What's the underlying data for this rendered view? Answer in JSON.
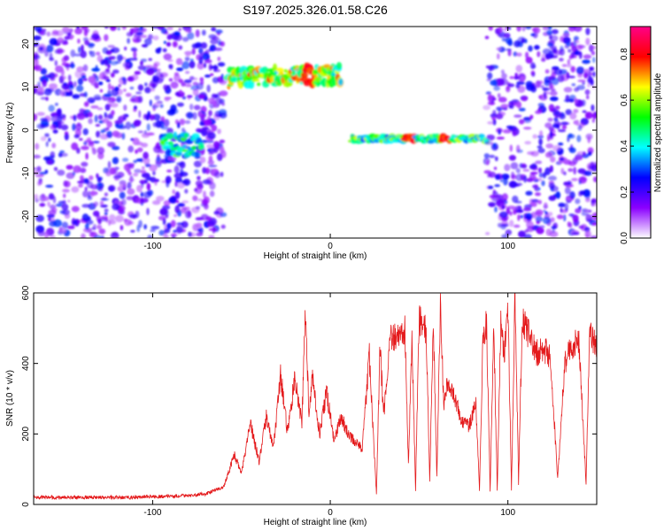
{
  "chart_data": [
    {
      "type": "heatmap",
      "title": "S197.2025.326.01.58.C26",
      "xlabel": "Height of straight line (km)",
      "ylabel": "Frequency (Hz)",
      "xlim": [
        -167,
        150
      ],
      "ylim": [
        -25,
        24
      ],
      "xticks": [
        "-100",
        "0",
        "100"
      ],
      "yticks": [
        "-20",
        "-10",
        "0",
        "10",
        "20"
      ],
      "colorbar": {
        "label": "Normalized spectral amplitude",
        "range": [
          0.0,
          0.92
        ],
        "ticks": [
          "0.0",
          "0.2",
          "0.4",
          "0.6",
          "0.8"
        ],
        "colormap": [
          "#ffffff",
          "#8b00ff",
          "#0000ff",
          "#00ffff",
          "#00ff00",
          "#ffff00",
          "#ff0000",
          "#ff0088"
        ]
      },
      "features": [
        {
          "x_range": [
            -167,
            -60
          ],
          "freq": "broadband",
          "amplitude": 0.2
        },
        {
          "x_range": [
            -95,
            -72
          ],
          "freq_range": [
            -6,
            -1
          ],
          "amplitude": 0.45
        },
        {
          "x_range": [
            -58,
            6
          ],
          "freq_start": 12,
          "freq_end": 13,
          "amplitude": 0.6,
          "max": 0.85,
          "max_at": -12
        },
        {
          "x_range": [
            12,
            88
          ],
          "freq": -2,
          "amplitude": 0.5,
          "max": 0.85,
          "max_at": [
            45,
            65
          ]
        },
        {
          "x_range": [
            88,
            150
          ],
          "freq": "broadband",
          "amplitude": 0.2
        }
      ],
      "grid": false
    },
    {
      "type": "line",
      "title": "",
      "xlabel": "Height of straight line (km)",
      "ylabel": "SNR (10 * v/v)",
      "xlim": [
        -167,
        150
      ],
      "ylim": [
        0,
        600
      ],
      "xticks": [
        "-100",
        "0",
        "100"
      ],
      "yticks": [
        "0",
        "200",
        "400",
        "600"
      ],
      "color": "#e41a1c",
      "grid": false,
      "series": [
        {
          "x": [
            -167,
            -140,
            -110,
            -80,
            -70,
            -60,
            -54,
            -50,
            -45,
            -40,
            -36,
            -32,
            -28,
            -24,
            -20,
            -16,
            -14,
            -12,
            -10,
            -6,
            -2,
            2,
            6,
            10,
            14,
            18,
            22,
            24,
            26,
            28,
            30,
            34,
            38,
            42,
            44,
            46,
            48,
            50,
            54,
            56,
            58,
            60,
            62,
            64,
            66,
            70,
            74,
            78,
            82,
            84,
            86,
            88,
            90,
            92,
            94,
            96,
            98,
            100,
            102,
            104,
            106,
            108,
            112,
            116,
            120,
            124,
            128,
            132,
            136,
            140,
            144,
            146,
            148,
            150
          ],
          "y": [
            20,
            20,
            20,
            25,
            30,
            50,
            140,
            90,
            230,
            120,
            250,
            160,
            370,
            200,
            360,
            230,
            540,
            260,
            360,
            200,
            320,
            180,
            250,
            200,
            180,
            160,
            420,
            220,
            30,
            450,
            250,
            470,
            480,
            500,
            110,
            480,
            40,
            530,
            490,
            70,
            520,
            80,
            550,
            280,
            350,
            300,
            240,
            220,
            290,
            40,
            480,
            510,
            40,
            520,
            40,
            520,
            420,
            560,
            40,
            600,
            60,
            520,
            480,
            430,
            440,
            420,
            70,
            400,
            450,
            460,
            60,
            510,
            460,
            450
          ]
        }
      ]
    }
  ]
}
